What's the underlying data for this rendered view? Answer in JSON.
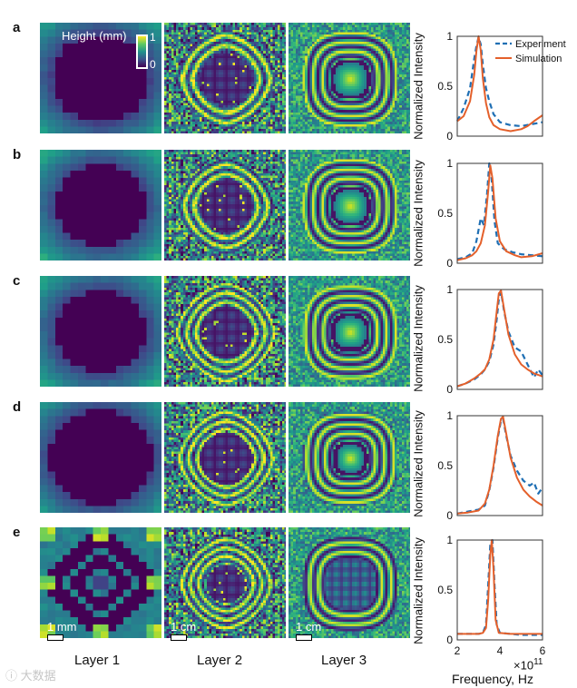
{
  "row_labels": [
    "a",
    "b",
    "c",
    "d",
    "e"
  ],
  "column_labels": [
    "Layer 1",
    "Layer 2",
    "Layer 3"
  ],
  "colorbar": {
    "title": "Height (mm)",
    "max_label": "1",
    "min_label": "0"
  },
  "scale_bars": {
    "layer1": "1 mm",
    "layer2": "1 cm",
    "layer3": "1 cm"
  },
  "watermark": "大数据",
  "colors": {
    "experiment": "#1f6fb4",
    "simulation": "#e4602b",
    "viridis_dark": "#440154",
    "viridis_bright": "#fde725"
  },
  "chart_data": [
    {
      "type": "line",
      "row": "a",
      "ylabel": "Normalized Intensity",
      "xlim": [
        2,
        6
      ],
      "ylim": [
        0,
        1
      ],
      "yticks": [
        "0",
        "0.5",
        "1"
      ],
      "legend": {
        "experiment": "Experiment",
        "simulation": "Simulation",
        "position": "top-right"
      },
      "series": [
        {
          "name": "Experiment",
          "style": "dashed",
          "x": [
            2.0,
            2.3,
            2.6,
            2.8,
            2.9,
            3.0,
            3.1,
            3.2,
            3.35,
            3.5,
            3.7,
            4.0,
            4.5,
            5.0,
            5.5,
            6.0
          ],
          "y": [
            0.15,
            0.28,
            0.48,
            0.78,
            0.9,
            0.99,
            0.92,
            0.72,
            0.48,
            0.35,
            0.22,
            0.14,
            0.11,
            0.1,
            0.12,
            0.14
          ]
        },
        {
          "name": "Simulation",
          "style": "solid",
          "x": [
            2.0,
            2.3,
            2.6,
            2.8,
            2.9,
            3.0,
            3.1,
            3.2,
            3.35,
            3.5,
            3.7,
            4.0,
            4.5,
            5.0,
            5.3,
            5.6,
            6.0
          ],
          "y": [
            0.15,
            0.2,
            0.35,
            0.62,
            0.85,
            1.0,
            0.86,
            0.58,
            0.33,
            0.19,
            0.11,
            0.07,
            0.05,
            0.07,
            0.1,
            0.15,
            0.21
          ]
        }
      ]
    },
    {
      "type": "line",
      "row": "b",
      "ylabel": "Normalized Intensity",
      "xlim": [
        2,
        6
      ],
      "ylim": [
        0,
        1
      ],
      "yticks": [
        "0",
        "0.5",
        "1"
      ],
      "series": [
        {
          "name": "Experiment",
          "style": "dashed",
          "x": [
            2.0,
            2.4,
            2.7,
            2.9,
            3.1,
            3.25,
            3.4,
            3.5,
            3.6,
            3.75,
            3.9,
            4.2,
            4.6,
            5.0,
            5.5,
            6.0
          ],
          "y": [
            0.04,
            0.06,
            0.1,
            0.22,
            0.45,
            0.38,
            0.7,
            1.0,
            0.88,
            0.42,
            0.2,
            0.14,
            0.11,
            0.09,
            0.08,
            0.07
          ]
        },
        {
          "name": "Simulation",
          "style": "solid",
          "x": [
            2.0,
            2.4,
            2.7,
            2.9,
            3.1,
            3.3,
            3.45,
            3.55,
            3.65,
            3.8,
            4.0,
            4.3,
            4.7,
            5.0,
            5.5,
            6.0
          ],
          "y": [
            0.03,
            0.05,
            0.08,
            0.12,
            0.2,
            0.38,
            0.72,
            0.98,
            0.85,
            0.45,
            0.22,
            0.12,
            0.08,
            0.06,
            0.07,
            0.1
          ]
        }
      ]
    },
    {
      "type": "line",
      "row": "c",
      "ylabel": "Normalized Intensity",
      "xlim": [
        2,
        6
      ],
      "ylim": [
        0,
        1
      ],
      "yticks": [
        "0",
        "0.5",
        "1"
      ],
      "series": [
        {
          "name": "Experiment",
          "style": "dashed",
          "x": [
            2.0,
            2.4,
            2.8,
            3.1,
            3.3,
            3.5,
            3.7,
            3.85,
            3.95,
            4.05,
            4.2,
            4.4,
            4.7,
            5.0,
            5.3,
            5.6,
            5.8,
            6.0
          ],
          "y": [
            0.03,
            0.06,
            0.1,
            0.15,
            0.2,
            0.28,
            0.45,
            0.7,
            0.9,
            0.98,
            0.78,
            0.58,
            0.42,
            0.38,
            0.25,
            0.12,
            0.2,
            0.14
          ]
        },
        {
          "name": "Simulation",
          "style": "solid",
          "x": [
            2.0,
            2.4,
            2.8,
            3.1,
            3.3,
            3.5,
            3.7,
            3.85,
            3.95,
            4.05,
            4.2,
            4.4,
            4.7,
            5.0,
            5.3,
            5.6,
            6.0
          ],
          "y": [
            0.03,
            0.06,
            0.11,
            0.16,
            0.2,
            0.3,
            0.5,
            0.78,
            0.96,
            0.99,
            0.8,
            0.55,
            0.35,
            0.25,
            0.2,
            0.16,
            0.13
          ]
        }
      ]
    },
    {
      "type": "line",
      "row": "d",
      "ylabel": "Normalized Intensity",
      "xlim": [
        2,
        6
      ],
      "ylim": [
        0,
        1
      ],
      "yticks": [
        "0",
        "0.5",
        "1"
      ],
      "series": [
        {
          "name": "Experiment",
          "style": "dashed",
          "x": [
            2.0,
            2.5,
            3.0,
            3.3,
            3.5,
            3.7,
            3.9,
            4.05,
            4.15,
            4.3,
            4.5,
            4.8,
            5.1,
            5.4,
            5.6,
            5.8,
            6.0
          ],
          "y": [
            0.02,
            0.04,
            0.06,
            0.1,
            0.25,
            0.48,
            0.78,
            0.95,
            0.97,
            0.8,
            0.6,
            0.45,
            0.35,
            0.3,
            0.33,
            0.22,
            0.28
          ]
        },
        {
          "name": "Simulation",
          "style": "solid",
          "x": [
            2.0,
            2.5,
            3.0,
            3.3,
            3.5,
            3.7,
            3.9,
            4.05,
            4.15,
            4.3,
            4.5,
            4.8,
            5.1,
            5.4,
            5.7,
            6.0
          ],
          "y": [
            0.02,
            0.03,
            0.05,
            0.12,
            0.26,
            0.5,
            0.8,
            0.97,
            0.99,
            0.82,
            0.58,
            0.38,
            0.26,
            0.19,
            0.14,
            0.1
          ]
        }
      ]
    },
    {
      "type": "line",
      "row": "e",
      "ylabel": "Normalized Intensity",
      "xlim": [
        2,
        6
      ],
      "ylim": [
        0,
        1
      ],
      "yticks": [
        "0",
        "0.5",
        "1"
      ],
      "xticks": [
        "2",
        "4",
        "6"
      ],
      "xlabel": "Frequency, Hz",
      "x_multiplier_base": "×10",
      "x_multiplier_exp": "11",
      "series": [
        {
          "name": "Experiment",
          "style": "dashed",
          "x": [
            2.0,
            2.5,
            3.0,
            3.2,
            3.35,
            3.45,
            3.55,
            3.65,
            3.75,
            3.85,
            4.0,
            4.5,
            5.0,
            6.0
          ],
          "y": [
            0.06,
            0.06,
            0.06,
            0.07,
            0.15,
            0.55,
            0.95,
            1.0,
            0.55,
            0.15,
            0.07,
            0.06,
            0.05,
            0.05
          ]
        },
        {
          "name": "Simulation",
          "style": "solid",
          "x": [
            2.0,
            2.5,
            3.0,
            3.2,
            3.35,
            3.45,
            3.55,
            3.62,
            3.7,
            3.8,
            3.95,
            4.5,
            5.0,
            6.0
          ],
          "y": [
            0.06,
            0.06,
            0.06,
            0.07,
            0.12,
            0.4,
            0.85,
            1.0,
            0.7,
            0.2,
            0.07,
            0.06,
            0.06,
            0.06
          ]
        }
      ]
    }
  ]
}
